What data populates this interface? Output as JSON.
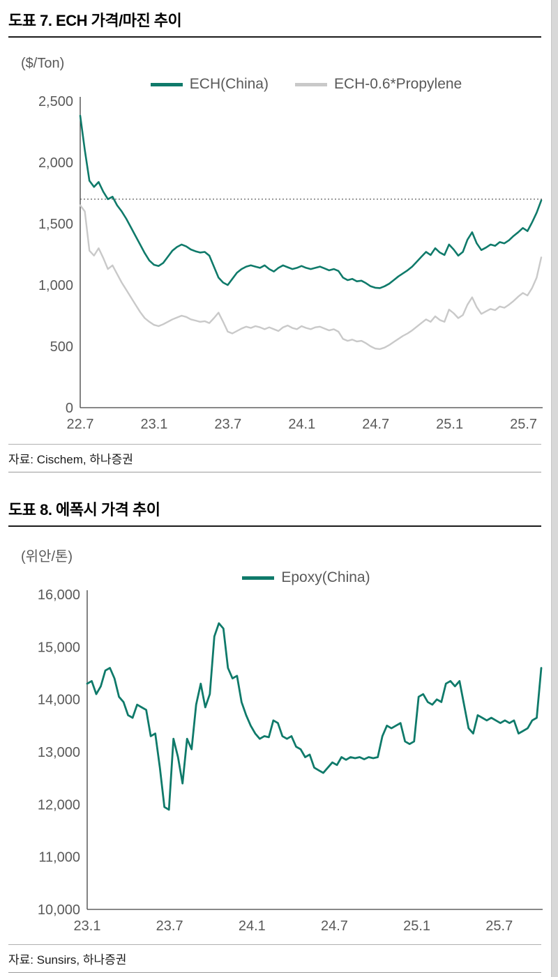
{
  "colors": {
    "teal": "#0f7a6a",
    "series_gray": "#c9c9c9",
    "axis": "#404040",
    "tick_text": "#595959",
    "reference_line": "#4d4d4d"
  },
  "chart_data": [
    {
      "type": "line",
      "title": "도표 7. ECH 가격/마진 추이",
      "ylabel": "($/Ton)",
      "source": "자료: Cischem, 하나증권",
      "grid": false,
      "legend_position": "top-center",
      "x_tick_labels": [
        "22.7",
        "23.1",
        "23.7",
        "24.1",
        "24.7",
        "25.1",
        "25.7"
      ],
      "x_tick_positions": [
        0,
        1,
        2,
        3,
        4,
        5,
        6
      ],
      "x_max": 6.24,
      "y_min": 0,
      "y_max": 2500,
      "y_ticks": [
        0,
        500,
        1000,
        1500,
        2000,
        2500
      ],
      "y_tick_labels": [
        "0",
        "500",
        "1,000",
        "1,500",
        "2,000",
        "2,500"
      ],
      "reference_line_y": 1700,
      "series": [
        {
          "name": "ECH(China)",
          "color": "#0f7a6a",
          "stroke_width": 2.6,
          "values": [
            2380,
            2100,
            1850,
            1800,
            1840,
            1760,
            1700,
            1720,
            1650,
            1600,
            1540,
            1470,
            1400,
            1330,
            1260,
            1200,
            1165,
            1155,
            1180,
            1230,
            1280,
            1310,
            1330,
            1315,
            1290,
            1275,
            1265,
            1270,
            1240,
            1150,
            1060,
            1020,
            1000,
            1050,
            1100,
            1130,
            1150,
            1160,
            1150,
            1140,
            1160,
            1130,
            1110,
            1140,
            1160,
            1145,
            1130,
            1140,
            1155,
            1140,
            1130,
            1140,
            1150,
            1135,
            1120,
            1130,
            1115,
            1060,
            1040,
            1050,
            1030,
            1035,
            1015,
            990,
            978,
            975,
            990,
            1010,
            1040,
            1070,
            1095,
            1120,
            1150,
            1190,
            1230,
            1270,
            1245,
            1300,
            1265,
            1245,
            1330,
            1290,
            1240,
            1270,
            1370,
            1430,
            1340,
            1285,
            1305,
            1330,
            1320,
            1350,
            1340,
            1365,
            1400,
            1430,
            1465,
            1440,
            1510,
            1590,
            1690
          ]
        },
        {
          "name": "ECH-0.6*Propylene",
          "color": "#c9c9c9",
          "stroke_width": 2.4,
          "values": [
            1650,
            1600,
            1280,
            1240,
            1300,
            1220,
            1130,
            1160,
            1090,
            1020,
            960,
            900,
            840,
            780,
            730,
            700,
            675,
            665,
            680,
            700,
            720,
            735,
            750,
            740,
            720,
            710,
            700,
            705,
            690,
            730,
            775,
            700,
            620,
            605,
            625,
            645,
            660,
            650,
            665,
            655,
            640,
            655,
            640,
            625,
            655,
            670,
            650,
            640,
            665,
            650,
            640,
            655,
            660,
            645,
            630,
            640,
            620,
            560,
            545,
            555,
            540,
            545,
            525,
            500,
            482,
            478,
            490,
            510,
            535,
            560,
            585,
            605,
            630,
            660,
            690,
            720,
            700,
            745,
            715,
            700,
            800,
            770,
            730,
            755,
            840,
            900,
            820,
            765,
            785,
            805,
            795,
            825,
            815,
            840,
            870,
            905,
            935,
            915,
            975,
            1060,
            1225
          ]
        }
      ]
    },
    {
      "type": "line",
      "title": "도표 8. 에폭시 가격 추이",
      "ylabel": "(위안/톤)",
      "source": "자료: Sunsirs, 하나증권",
      "grid": false,
      "legend_position": "top-center",
      "x_tick_labels": [
        "23.1",
        "23.7",
        "24.1",
        "24.7",
        "25.1",
        "25.7"
      ],
      "x_tick_positions": [
        0,
        1,
        2,
        3,
        4,
        5
      ],
      "x_max": 5.51,
      "y_min": 10000,
      "y_max": 16000,
      "y_ticks": [
        10000,
        11000,
        12000,
        13000,
        14000,
        15000,
        16000
      ],
      "y_tick_labels": [
        "10,000",
        "11,000",
        "12,000",
        "13,000",
        "14,000",
        "15,000",
        "16,000"
      ],
      "series": [
        {
          "name": "Epoxy(China)",
          "color": "#0f7a6a",
          "stroke_width": 2.8,
          "values": [
            14300,
            14350,
            14100,
            14250,
            14550,
            14600,
            14400,
            14050,
            13950,
            13700,
            13650,
            13900,
            13850,
            13800,
            13300,
            13350,
            12700,
            11950,
            11900,
            13250,
            12900,
            12400,
            13250,
            13050,
            13900,
            14300,
            13850,
            14100,
            15200,
            15450,
            15350,
            14600,
            14400,
            14450,
            13950,
            13700,
            13500,
            13350,
            13250,
            13300,
            13280,
            13600,
            13550,
            13300,
            13250,
            13300,
            13100,
            13050,
            12900,
            12950,
            12700,
            12650,
            12600,
            12700,
            12800,
            12750,
            12900,
            12850,
            12900,
            12880,
            12900,
            12860,
            12900,
            12880,
            12900,
            13300,
            13500,
            13450,
            13500,
            13550,
            13200,
            13150,
            13200,
            14050,
            14100,
            13950,
            13900,
            14000,
            13950,
            14300,
            14350,
            14250,
            14350,
            13900,
            13450,
            13350,
            13700,
            13650,
            13600,
            13650,
            13600,
            13550,
            13600,
            13550,
            13600,
            13350,
            13400,
            13450,
            13600,
            13650,
            14600
          ]
        }
      ]
    }
  ]
}
